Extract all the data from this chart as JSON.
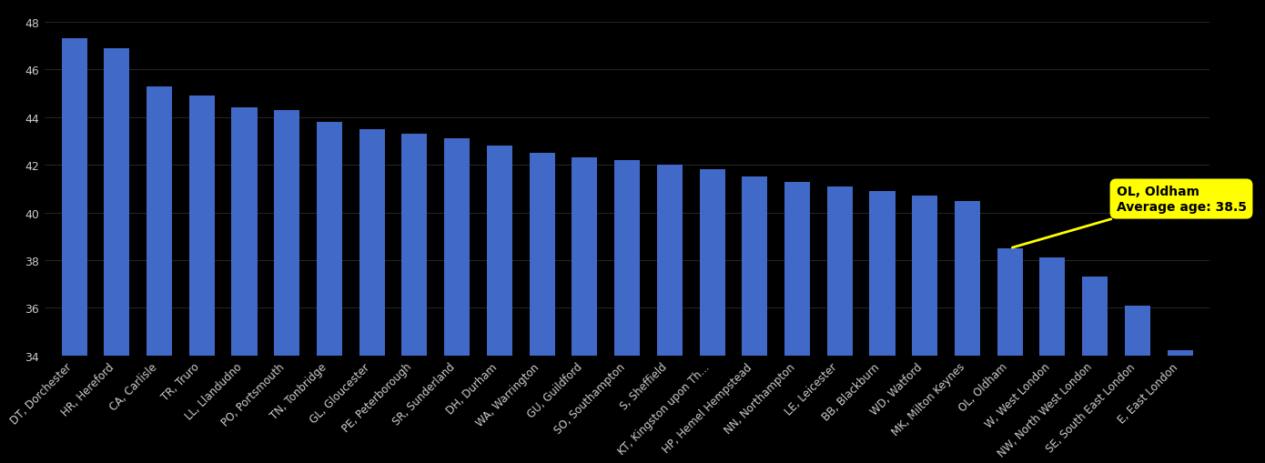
{
  "categories": [
    "DT, Dorchester",
    "HR, Hereford",
    "CA, Carlisle",
    "TR, Truro",
    "LL, Llandudno",
    "PO, Portsmouth",
    "TN, Tonbridge",
    "GL, Gloucester",
    "PE, Peterborough",
    "SR, Sunderland",
    "DH, Durham",
    "WA, Warrington",
    "GU, Guildford",
    "SO, Southampton",
    "S, Sheffield",
    "KT, Kingston upon Th...",
    "HP, Hemel Hempstead",
    "NN, Northampton",
    "LE, Leicester",
    "BB, Blackburn",
    "WD, Watford",
    "MK, Milton Keynes",
    "OL, Oldham",
    "W, West London",
    "NW, North West London",
    "SE, South East London",
    "E, East London"
  ],
  "values": [
    47.3,
    46.9,
    45.3,
    44.9,
    44.4,
    44.3,
    43.8,
    43.5,
    43.3,
    43.1,
    42.8,
    42.5,
    42.3,
    42.2,
    42.0,
    41.8,
    41.5,
    41.3,
    41.1,
    40.9,
    40.7,
    40.5,
    38.5,
    38.1,
    37.3,
    36.1,
    34.2
  ],
  "highlighted_index": 22,
  "highlight_text": "OL, Oldham\nAverage age: 38.5",
  "bar_color": "#4169c8",
  "background_color": "#000000",
  "text_color": "#cccccc",
  "grid_color": "#888888",
  "annotation_bg": "#ffff00",
  "annotation_text_color": "#000000",
  "ylim_min": 34,
  "ylim_max": 48.8,
  "yticks": [
    34,
    36,
    38,
    40,
    42,
    44,
    46,
    48
  ],
  "figsize": [
    13.9,
    5.1
  ],
  "dpi": 100
}
